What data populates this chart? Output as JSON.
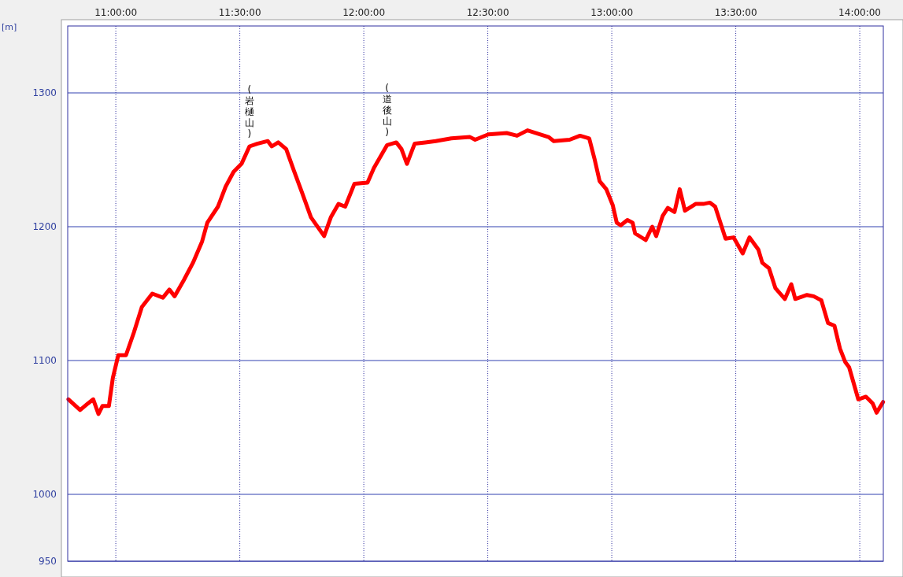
{
  "chart_data": {
    "type": "line",
    "ylabel": "[m]",
    "color": "#ff0000",
    "marker": "none",
    "line_style": "solid",
    "grid": true,
    "xlim": [
      10.806,
      14.095
    ],
    "ylim": [
      950,
      1350
    ],
    "xticks": [
      {
        "value": 11,
        "label": "11:00:00"
      },
      {
        "value": 11.5,
        "label": "11:30:00"
      },
      {
        "value": 12,
        "label": "12:00:00"
      },
      {
        "value": 12.5,
        "label": "12:30:00"
      },
      {
        "value": 13,
        "label": "13:00:00"
      },
      {
        "value": 13.5,
        "label": "13:30:00"
      },
      {
        "value": 14,
        "label": "14:00:00"
      }
    ],
    "yticks": [
      950,
      1000,
      1100,
      1200,
      1300
    ],
    "annotations": [
      {
        "text": "(岩樋山)",
        "x": 11.539,
        "y": 1260
      },
      {
        "text": "(道後山)",
        "x": 12.094,
        "y": 1261
      }
    ],
    "x": [
      10.809,
      10.856,
      10.888,
      10.909,
      10.93,
      10.946,
      10.972,
      10.988,
      11.01,
      11.041,
      11.073,
      11.105,
      11.147,
      11.19,
      11.216,
      11.237,
      11.274,
      11.311,
      11.348,
      11.369,
      11.412,
      11.443,
      11.475,
      11.507,
      11.539,
      11.57,
      11.613,
      11.629,
      11.655,
      11.687,
      11.718,
      11.75,
      11.787,
      11.84,
      11.867,
      11.898,
      11.925,
      11.962,
      12.015,
      12.041,
      12.094,
      12.131,
      12.152,
      12.174,
      12.205,
      12.248,
      12.29,
      12.353,
      12.428,
      12.449,
      12.502,
      12.576,
      12.618,
      12.66,
      12.745,
      12.766,
      12.83,
      12.872,
      12.909,
      12.93,
      12.951,
      12.978,
      13.004,
      13.02,
      13.036,
      13.063,
      13.084,
      13.094,
      13.137,
      13.163,
      13.179,
      13.205,
      13.226,
      13.253,
      13.274,
      13.295,
      13.338,
      13.369,
      13.396,
      13.417,
      13.459,
      13.491,
      13.528,
      13.555,
      13.591,
      13.607,
      13.634,
      13.66,
      13.698,
      13.724,
      13.74,
      13.787,
      13.814,
      13.845,
      13.872,
      13.898,
      13.92,
      13.941,
      13.957,
      13.994,
      14.025,
      14.052,
      14.068,
      14.094
    ],
    "values": [
      1071,
      1063,
      1068,
      1071,
      1060,
      1066,
      1066,
      1087,
      1104,
      1104,
      1121,
      1140,
      1150,
      1147,
      1153,
      1148,
      1160,
      1173,
      1189,
      1203,
      1215,
      1230,
      1241,
      1247,
      1260,
      1262,
      1264,
      1260,
      1263,
      1258,
      1242,
      1226,
      1207,
      1193,
      1207,
      1217,
      1215,
      1232,
      1233,
      1244,
      1261,
      1263,
      1258,
      1247,
      1262,
      1263,
      1264,
      1266,
      1267,
      1265,
      1269,
      1270,
      1268,
      1272,
      1267,
      1264,
      1265,
      1268,
      1266,
      1251,
      1234,
      1228,
      1216,
      1203,
      1201,
      1205,
      1203,
      1195,
      1190,
      1200,
      1193,
      1208,
      1214,
      1211,
      1228,
      1212,
      1217,
      1217,
      1218,
      1215,
      1191,
      1192,
      1180,
      1192,
      1183,
      1173,
      1169,
      1154,
      1146,
      1157,
      1146,
      1149,
      1148,
      1145,
      1128,
      1126,
      1109,
      1099,
      1095,
      1071,
      1073,
      1068,
      1061,
      1069
    ]
  }
}
